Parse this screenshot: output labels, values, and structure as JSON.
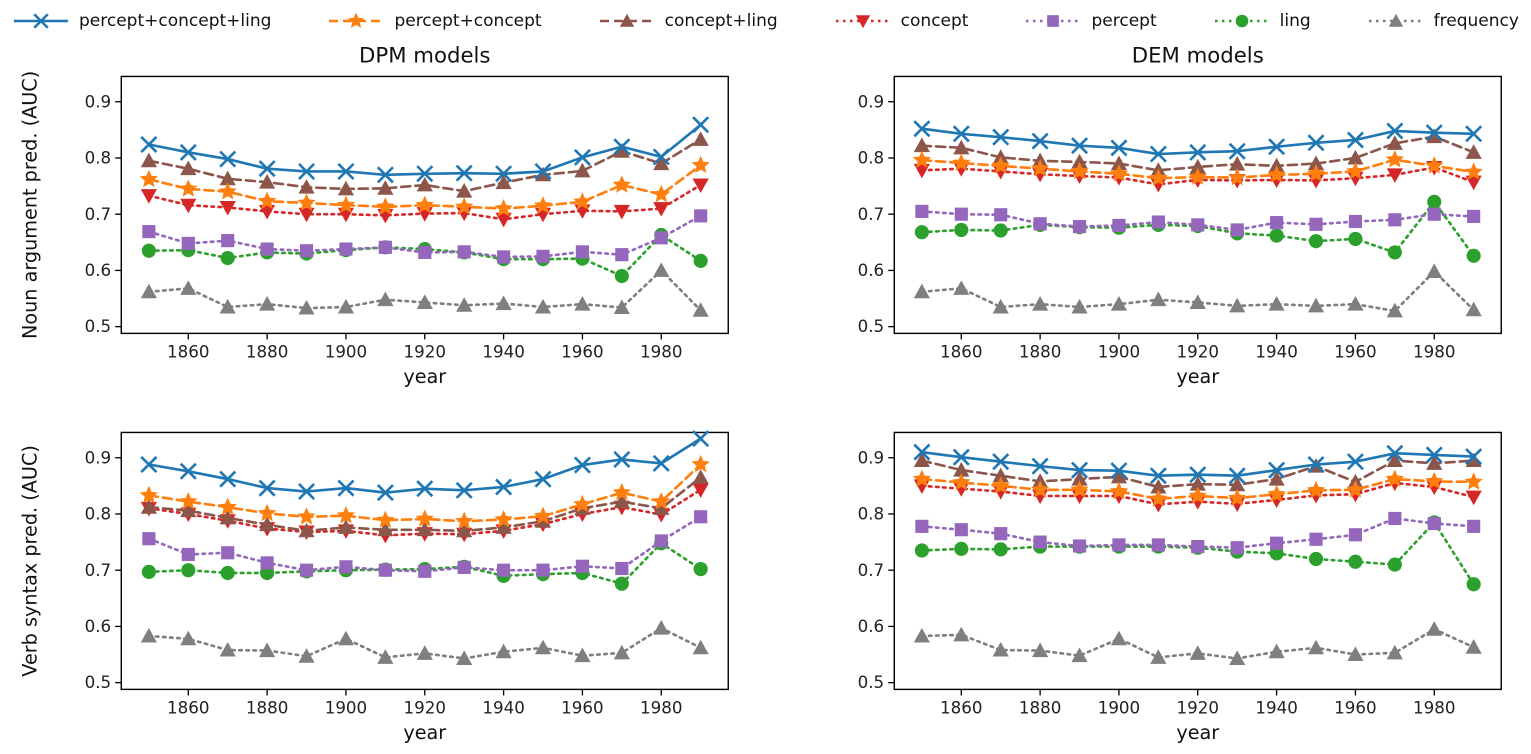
{
  "legend": [
    {
      "name": "percept+concept+ling",
      "color": "#1f77b4",
      "marker": "x",
      "dash": "solid"
    },
    {
      "name": "percept+concept",
      "color": "#ff7f0e",
      "marker": "star",
      "dash": "dashed"
    },
    {
      "name": "concept+ling",
      "color": "#8c564b",
      "marker": "triangle-up",
      "dash": "dashed"
    },
    {
      "name": "concept",
      "color": "#d62728",
      "marker": "triangle-down",
      "dash": "dotted"
    },
    {
      "name": "percept",
      "color": "#9467bd",
      "marker": "square",
      "dash": "dotted"
    },
    {
      "name": "ling",
      "color": "#2ca02c",
      "marker": "circle",
      "dash": "dotted"
    },
    {
      "name": "frequency",
      "color": "#7f7f7f",
      "marker": "triangle-up",
      "dash": "dotted"
    }
  ],
  "chart_data": {
    "type": "line",
    "x": [
      1850,
      1860,
      1870,
      1880,
      1890,
      1900,
      1910,
      1920,
      1930,
      1940,
      1950,
      1960,
      1970,
      1980,
      1990
    ],
    "xlabel": "year",
    "xticks": [
      1860,
      1880,
      1900,
      1920,
      1940,
      1960,
      1980
    ],
    "yticks": [
      "0.5",
      "0.6",
      "0.7",
      "0.8",
      "0.9"
    ],
    "xlim": [
      1843,
      1997
    ],
    "ylim": [
      0.488,
      0.945
    ],
    "grid": false,
    "legend_position": "top",
    "plots": [
      {
        "id": "noun-dpm",
        "title": "DPM models",
        "ylabel": "Noun argument pred. (AUC)",
        "series": [
          {
            "name": "percept+concept+ling",
            "values": [
              0.824,
              0.81,
              0.798,
              0.781,
              0.776,
              0.776,
              0.77,
              0.772,
              0.773,
              0.772,
              0.776,
              0.801,
              0.82,
              0.802,
              0.859
            ]
          },
          {
            "name": "percept+concept",
            "values": [
              0.762,
              0.745,
              0.74,
              0.723,
              0.72,
              0.716,
              0.713,
              0.716,
              0.713,
              0.71,
              0.715,
              0.722,
              0.752,
              0.735,
              0.787
            ]
          },
          {
            "name": "concept+ling",
            "values": [
              0.795,
              0.781,
              0.763,
              0.757,
              0.748,
              0.745,
              0.746,
              0.752,
              0.741,
              0.756,
              0.77,
              0.777,
              0.812,
              0.79,
              0.833
            ]
          },
          {
            "name": "concept",
            "values": [
              0.733,
              0.716,
              0.712,
              0.705,
              0.7,
              0.7,
              0.698,
              0.701,
              0.702,
              0.691,
              0.7,
              0.706,
              0.705,
              0.71,
              0.752
            ]
          },
          {
            "name": "percept",
            "values": [
              0.669,
              0.648,
              0.653,
              0.638,
              0.635,
              0.638,
              0.641,
              0.632,
              0.633,
              0.624,
              0.625,
              0.633,
              0.628,
              0.658,
              0.697
            ]
          },
          {
            "name": "ling",
            "values": [
              0.635,
              0.636,
              0.622,
              0.632,
              0.63,
              0.636,
              0.641,
              0.638,
              0.632,
              0.62,
              0.62,
              0.621,
              0.59,
              0.663,
              0.617
            ]
          },
          {
            "name": "frequency",
            "values": [
              0.562,
              0.568,
              0.535,
              0.54,
              0.533,
              0.535,
              0.548,
              0.543,
              0.538,
              0.541,
              0.535,
              0.54,
              0.534,
              0.6,
              0.529
            ]
          }
        ]
      },
      {
        "id": "noun-dem",
        "title": "DEM models",
        "ylabel": "",
        "series": [
          {
            "name": "percept+concept+ling",
            "values": [
              0.852,
              0.843,
              0.837,
              0.83,
              0.822,
              0.818,
              0.807,
              0.81,
              0.812,
              0.82,
              0.827,
              0.832,
              0.848,
              0.845,
              0.843
            ]
          },
          {
            "name": "percept+concept",
            "values": [
              0.796,
              0.791,
              0.786,
              0.781,
              0.776,
              0.772,
              0.764,
              0.766,
              0.765,
              0.77,
              0.772,
              0.776,
              0.797,
              0.786,
              0.775
            ]
          },
          {
            "name": "concept+ling",
            "values": [
              0.822,
              0.818,
              0.801,
              0.795,
              0.793,
              0.79,
              0.778,
              0.784,
              0.789,
              0.786,
              0.79,
              0.8,
              0.826,
              0.838,
              0.81
            ]
          },
          {
            "name": "concept",
            "values": [
              0.778,
              0.781,
              0.776,
              0.771,
              0.768,
              0.765,
              0.753,
              0.761,
              0.76,
              0.761,
              0.76,
              0.764,
              0.77,
              0.783,
              0.757
            ]
          },
          {
            "name": "percept",
            "values": [
              0.705,
              0.7,
              0.699,
              0.683,
              0.678,
              0.68,
              0.686,
              0.681,
              0.672,
              0.685,
              0.682,
              0.687,
              0.69,
              0.7,
              0.696
            ]
          },
          {
            "name": "ling",
            "values": [
              0.668,
              0.672,
              0.671,
              0.681,
              0.677,
              0.676,
              0.681,
              0.679,
              0.666,
              0.662,
              0.652,
              0.656,
              0.632,
              0.722,
              0.626
            ]
          },
          {
            "name": "frequency",
            "values": [
              0.562,
              0.568,
              0.535,
              0.54,
              0.535,
              0.54,
              0.548,
              0.543,
              0.537,
              0.54,
              0.537,
              0.54,
              0.528,
              0.598,
              0.53
            ]
          }
        ]
      },
      {
        "id": "verb-dpm",
        "title": "",
        "ylabel": "Verb syntax pred. (AUC)",
        "series": [
          {
            "name": "percept+concept+ling",
            "values": [
              0.888,
              0.876,
              0.862,
              0.846,
              0.84,
              0.846,
              0.838,
              0.845,
              0.842,
              0.848,
              0.862,
              0.887,
              0.897,
              0.89,
              0.934
            ]
          },
          {
            "name": "percept+concept",
            "values": [
              0.833,
              0.822,
              0.812,
              0.801,
              0.795,
              0.797,
              0.789,
              0.791,
              0.787,
              0.79,
              0.796,
              0.817,
              0.838,
              0.822,
              0.888
            ]
          },
          {
            "name": "concept+ling",
            "values": [
              0.812,
              0.806,
              0.793,
              0.781,
              0.77,
              0.776,
              0.772,
              0.772,
              0.77,
              0.776,
              0.787,
              0.81,
              0.822,
              0.81,
              0.865
            ]
          },
          {
            "name": "concept",
            "values": [
              0.81,
              0.8,
              0.788,
              0.774,
              0.768,
              0.77,
              0.762,
              0.765,
              0.764,
              0.77,
              0.782,
              0.8,
              0.812,
              0.799,
              0.843
            ]
          },
          {
            "name": "percept",
            "values": [
              0.756,
              0.728,
              0.731,
              0.713,
              0.7,
              0.706,
              0.7,
              0.698,
              0.705,
              0.7,
              0.7,
              0.707,
              0.703,
              0.752,
              0.795
            ]
          },
          {
            "name": "ling",
            "values": [
              0.697,
              0.7,
              0.695,
              0.695,
              0.698,
              0.7,
              0.701,
              0.702,
              0.706,
              0.69,
              0.693,
              0.695,
              0.676,
              0.748,
              0.702
            ]
          },
          {
            "name": "frequency",
            "values": [
              0.583,
              0.578,
              0.558,
              0.557,
              0.547,
              0.578,
              0.545,
              0.552,
              0.543,
              0.555,
              0.562,
              0.548,
              0.553,
              0.597,
              0.562
            ]
          }
        ]
      },
      {
        "id": "verb-dem",
        "title": "",
        "ylabel": "",
        "series": [
          {
            "name": "percept+concept+ling",
            "values": [
              0.91,
              0.901,
              0.893,
              0.885,
              0.878,
              0.877,
              0.868,
              0.87,
              0.868,
              0.878,
              0.888,
              0.893,
              0.908,
              0.905,
              0.902
            ]
          },
          {
            "name": "percept+concept",
            "values": [
              0.862,
              0.856,
              0.85,
              0.843,
              0.843,
              0.84,
              0.827,
              0.832,
              0.828,
              0.835,
              0.842,
              0.843,
              0.862,
              0.858,
              0.857
            ]
          },
          {
            "name": "concept+ling",
            "values": [
              0.895,
              0.878,
              0.868,
              0.858,
              0.862,
              0.866,
              0.848,
              0.853,
              0.852,
              0.862,
              0.885,
              0.857,
              0.895,
              0.89,
              0.895
            ]
          },
          {
            "name": "concept",
            "values": [
              0.85,
              0.845,
              0.84,
              0.832,
              0.832,
              0.832,
              0.817,
              0.822,
              0.818,
              0.825,
              0.833,
              0.835,
              0.855,
              0.848,
              0.83
            ]
          },
          {
            "name": "percept",
            "values": [
              0.778,
              0.772,
              0.765,
              0.75,
              0.743,
              0.745,
              0.745,
              0.742,
              0.74,
              0.748,
              0.755,
              0.763,
              0.792,
              0.783,
              0.778
            ]
          },
          {
            "name": "ling",
            "values": [
              0.735,
              0.738,
              0.737,
              0.742,
              0.742,
              0.742,
              0.742,
              0.74,
              0.733,
              0.73,
              0.72,
              0.715,
              0.71,
              0.785,
              0.675
            ]
          },
          {
            "name": "frequency",
            "values": [
              0.583,
              0.585,
              0.558,
              0.557,
              0.548,
              0.578,
              0.545,
              0.552,
              0.543,
              0.555,
              0.562,
              0.55,
              0.553,
              0.595,
              0.563
            ]
          }
        ]
      }
    ]
  }
}
